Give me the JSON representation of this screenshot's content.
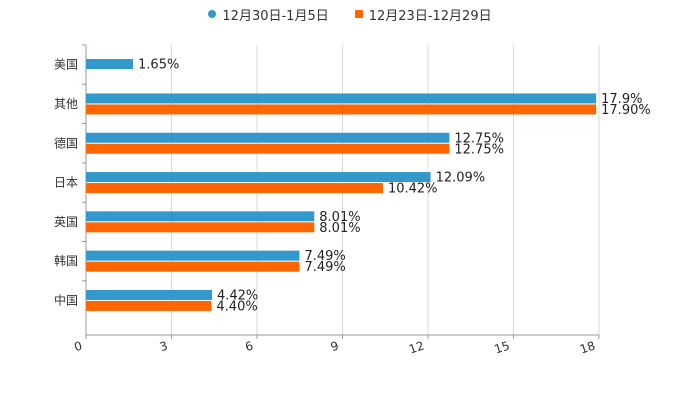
{
  "chart_data": {
    "type": "bar",
    "orientation": "horizontal",
    "categories": [
      "美国",
      "其他",
      "德国",
      "日本",
      "英国",
      "韩国",
      "中国"
    ],
    "series": [
      {
        "name": "12月30日-1月5日",
        "color": "#3399cc",
        "values": [
          1.65,
          17.9,
          12.75,
          12.09,
          8.01,
          7.49,
          4.42
        ],
        "labels": [
          "1.65%",
          "17.9%",
          "12.75%",
          "12.09%",
          "8.01%",
          "7.49%",
          "4.42%"
        ]
      },
      {
        "name": "12月23日-12月29日",
        "color": "#ff6600",
        "values": [
          null,
          17.9,
          12.75,
          10.42,
          8.01,
          7.49,
          4.4
        ],
        "labels": [
          null,
          "17.90%",
          "12.75%",
          "10.42%",
          "8.01%",
          "7.49%",
          "4.40%"
        ]
      }
    ],
    "xlim": [
      0,
      18
    ],
    "xticks": [
      0,
      3,
      6,
      9,
      12,
      15,
      18
    ],
    "xtick_labels": [
      "0",
      "3",
      "6",
      "9",
      "12",
      "15",
      "18"
    ],
    "grid": true,
    "legend": "top-center",
    "title": "",
    "xlabel": "",
    "ylabel": ""
  }
}
